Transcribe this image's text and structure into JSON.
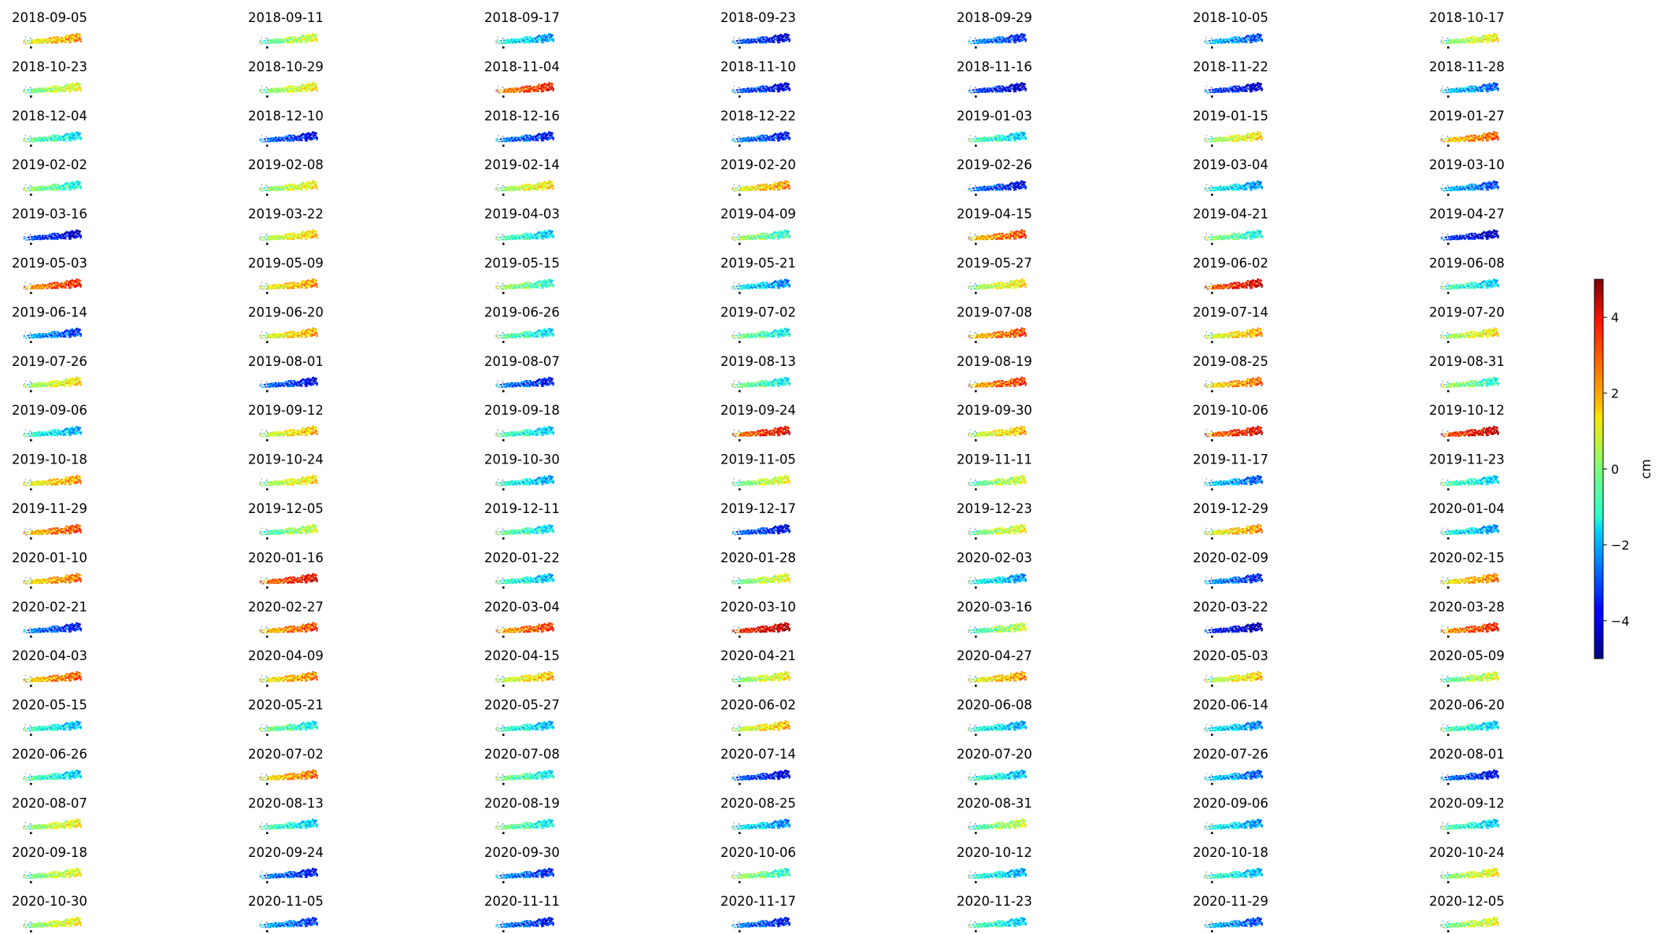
{
  "chart_data": {
    "type": "heatmap",
    "description_type": "small-multiples",
    "grid": false,
    "colormap": "jet",
    "vmin": -5,
    "vmax": 5,
    "colorbar": {
      "label": "cm",
      "ticks": [
        -4,
        -2,
        0,
        2,
        4
      ],
      "tick_labels": [
        "−4",
        "−2",
        "0",
        "2",
        "4"
      ],
      "placement": "right"
    },
    "panels": [
      {
        "date": "2018-09-05",
        "mean": 1.6
      },
      {
        "date": "2018-09-11",
        "mean": 0.2
      },
      {
        "date": "2018-09-17",
        "mean": -1.6
      },
      {
        "date": "2018-09-23",
        "mean": -3.4
      },
      {
        "date": "2018-09-29",
        "mean": -2.8
      },
      {
        "date": "2018-10-05",
        "mean": -2.3
      },
      {
        "date": "2018-10-17",
        "mean": 0.6
      },
      {
        "date": "2018-10-23",
        "mean": 0.4
      },
      {
        "date": "2018-10-29",
        "mean": 0.6
      },
      {
        "date": "2018-11-04",
        "mean": 2.9
      },
      {
        "date": "2018-11-10",
        "mean": -3.4
      },
      {
        "date": "2018-11-16",
        "mean": -3.6
      },
      {
        "date": "2018-11-22",
        "mean": -3.6
      },
      {
        "date": "2018-11-28",
        "mean": -2.2
      },
      {
        "date": "2018-12-04",
        "mean": -0.8
      },
      {
        "date": "2018-12-10",
        "mean": -3.2
      },
      {
        "date": "2018-12-16",
        "mean": -3.0
      },
      {
        "date": "2018-12-22",
        "mean": -3.0
      },
      {
        "date": "2019-01-03",
        "mean": -1.0
      },
      {
        "date": "2019-01-15",
        "mean": 0.8
      },
      {
        "date": "2019-01-27",
        "mean": 2.2
      },
      {
        "date": "2019-02-02",
        "mean": -0.4
      },
      {
        "date": "2019-02-08",
        "mean": 0.6
      },
      {
        "date": "2019-02-14",
        "mean": 0.8
      },
      {
        "date": "2019-02-20",
        "mean": 1.6
      },
      {
        "date": "2019-02-26",
        "mean": -3.2
      },
      {
        "date": "2019-03-04",
        "mean": -1.6
      },
      {
        "date": "2019-03-10",
        "mean": -2.4
      },
      {
        "date": "2019-03-16",
        "mean": -3.6
      },
      {
        "date": "2019-03-22",
        "mean": 1.0
      },
      {
        "date": "2019-04-03",
        "mean": -1.0
      },
      {
        "date": "2019-04-09",
        "mean": -0.2
      },
      {
        "date": "2019-04-15",
        "mean": 2.4
      },
      {
        "date": "2019-04-21",
        "mean": -0.4
      },
      {
        "date": "2019-04-27",
        "mean": -3.8
      },
      {
        "date": "2019-05-03",
        "mean": 2.8
      },
      {
        "date": "2019-05-09",
        "mean": 1.6
      },
      {
        "date": "2019-05-15",
        "mean": -0.2
      },
      {
        "date": "2019-05-21",
        "mean": -1.8
      },
      {
        "date": "2019-05-27",
        "mean": 0.8
      },
      {
        "date": "2019-06-02",
        "mean": 3.4
      },
      {
        "date": "2019-06-08",
        "mean": -1.0
      },
      {
        "date": "2019-06-14",
        "mean": -2.6
      },
      {
        "date": "2019-06-20",
        "mean": 1.4
      },
      {
        "date": "2019-06-26",
        "mean": -0.8
      },
      {
        "date": "2019-07-02",
        "mean": -0.6
      },
      {
        "date": "2019-07-08",
        "mean": 2.4
      },
      {
        "date": "2019-07-14",
        "mean": 1.4
      },
      {
        "date": "2019-07-20",
        "mean": 0.8
      },
      {
        "date": "2019-07-26",
        "mean": 0.8
      },
      {
        "date": "2019-08-01",
        "mean": -3.2
      },
      {
        "date": "2019-08-07",
        "mean": -3.0
      },
      {
        "date": "2019-08-13",
        "mean": -0.6
      },
      {
        "date": "2019-08-19",
        "mean": 2.6
      },
      {
        "date": "2019-08-25",
        "mean": 2.0
      },
      {
        "date": "2019-08-31",
        "mean": -0.2
      },
      {
        "date": "2019-09-06",
        "mean": -1.4
      },
      {
        "date": "2019-09-12",
        "mean": 1.2
      },
      {
        "date": "2019-09-18",
        "mean": -1.0
      },
      {
        "date": "2019-09-24",
        "mean": 3.2
      },
      {
        "date": "2019-09-30",
        "mean": 1.2
      },
      {
        "date": "2019-10-06",
        "mean": 3.2
      },
      {
        "date": "2019-10-12",
        "mean": 3.6
      },
      {
        "date": "2019-10-18",
        "mean": 1.6
      },
      {
        "date": "2019-10-24",
        "mean": 0.8
      },
      {
        "date": "2019-10-30",
        "mean": -1.4
      },
      {
        "date": "2019-11-05",
        "mean": 0.4
      },
      {
        "date": "2019-11-11",
        "mean": 0.2
      },
      {
        "date": "2019-11-17",
        "mean": -2.2
      },
      {
        "date": "2019-11-23",
        "mean": -1.0
      },
      {
        "date": "2019-11-29",
        "mean": 2.4
      },
      {
        "date": "2019-12-05",
        "mean": 0.0
      },
      {
        "date": "2019-12-11",
        "mean": -0.8
      },
      {
        "date": "2019-12-17",
        "mean": -3.2
      },
      {
        "date": "2019-12-23",
        "mean": 0.4
      },
      {
        "date": "2019-12-29",
        "mean": 1.6
      },
      {
        "date": "2020-01-04",
        "mean": -1.6
      },
      {
        "date": "2020-01-10",
        "mean": 2.0
      },
      {
        "date": "2020-01-16",
        "mean": 3.2
      },
      {
        "date": "2020-01-22",
        "mean": -1.2
      },
      {
        "date": "2020-01-28",
        "mean": 0.4
      },
      {
        "date": "2020-02-03",
        "mean": -1.6
      },
      {
        "date": "2020-02-09",
        "mean": -2.8
      },
      {
        "date": "2020-02-15",
        "mean": 1.8
      },
      {
        "date": "2020-02-21",
        "mean": -3.0
      },
      {
        "date": "2020-02-27",
        "mean": 2.4
      },
      {
        "date": "2020-03-04",
        "mean": 2.6
      },
      {
        "date": "2020-03-10",
        "mean": 3.8
      },
      {
        "date": "2020-03-16",
        "mean": 0.0
      },
      {
        "date": "2020-03-22",
        "mean": -4.0
      },
      {
        "date": "2020-03-28",
        "mean": 2.8
      },
      {
        "date": "2020-04-03",
        "mean": 2.2
      },
      {
        "date": "2020-04-09",
        "mean": 1.8
      },
      {
        "date": "2020-04-15",
        "mean": 1.2
      },
      {
        "date": "2020-04-21",
        "mean": 0.6
      },
      {
        "date": "2020-04-27",
        "mean": 1.6
      },
      {
        "date": "2020-05-03",
        "mean": 1.0
      },
      {
        "date": "2020-05-09",
        "mean": 0.2
      },
      {
        "date": "2020-05-15",
        "mean": -1.2
      },
      {
        "date": "2020-05-21",
        "mean": -0.6
      },
      {
        "date": "2020-05-27",
        "mean": -1.2
      },
      {
        "date": "2020-06-02",
        "mean": 1.2
      },
      {
        "date": "2020-06-08",
        "mean": -1.4
      },
      {
        "date": "2020-06-14",
        "mean": -1.8
      },
      {
        "date": "2020-06-20",
        "mean": -1.0
      },
      {
        "date": "2020-06-26",
        "mean": -1.0
      },
      {
        "date": "2020-07-02",
        "mean": 2.0
      },
      {
        "date": "2020-07-08",
        "mean": -0.6
      },
      {
        "date": "2020-07-14",
        "mean": -3.4
      },
      {
        "date": "2020-07-20",
        "mean": -1.2
      },
      {
        "date": "2020-07-26",
        "mean": -2.2
      },
      {
        "date": "2020-08-01",
        "mean": -3.2
      },
      {
        "date": "2020-08-07",
        "mean": 0.6
      },
      {
        "date": "2020-08-13",
        "mean": -1.0
      },
      {
        "date": "2020-08-19",
        "mean": -0.6
      },
      {
        "date": "2020-08-25",
        "mean": -1.8
      },
      {
        "date": "2020-08-31",
        "mean": 0.0
      },
      {
        "date": "2020-09-06",
        "mean": -1.6
      },
      {
        "date": "2020-09-12",
        "mean": -1.0
      },
      {
        "date": "2020-09-18",
        "mean": 0.4
      },
      {
        "date": "2020-09-24",
        "mean": -3.0
      },
      {
        "date": "2020-09-30",
        "mean": -2.8
      },
      {
        "date": "2020-10-06",
        "mean": -0.2
      },
      {
        "date": "2020-10-12",
        "mean": -1.4
      },
      {
        "date": "2020-10-18",
        "mean": -1.2
      },
      {
        "date": "2020-10-24",
        "mean": 0.6
      },
      {
        "date": "2020-10-30",
        "mean": 0.6
      },
      {
        "date": "2020-11-05",
        "mean": -2.6
      },
      {
        "date": "2020-11-11",
        "mean": -3.0
      },
      {
        "date": "2020-11-17",
        "mean": -3.0
      },
      {
        "date": "2020-11-23",
        "mean": -1.0
      },
      {
        "date": "2020-11-29",
        "mean": -2.4
      },
      {
        "date": "2020-12-05",
        "mean": 0.4
      }
    ]
  }
}
